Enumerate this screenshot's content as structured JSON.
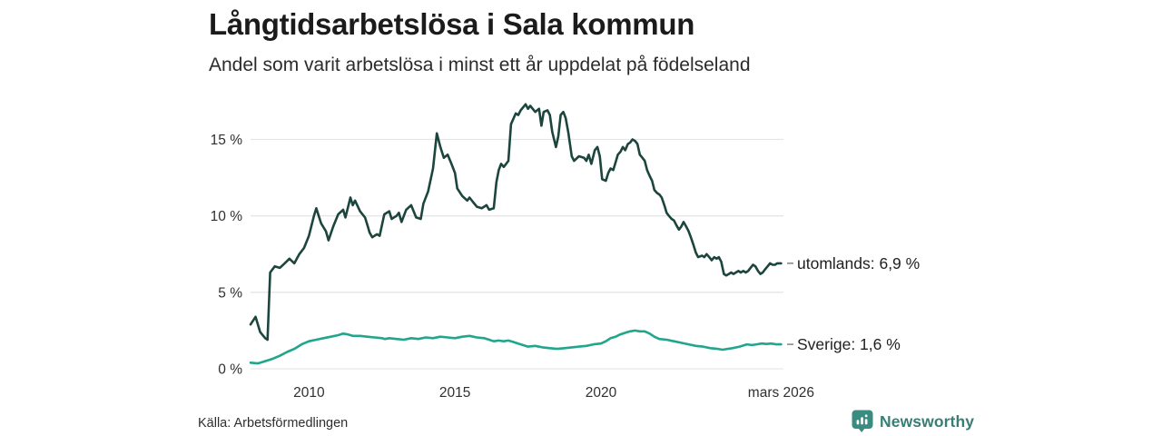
{
  "title": "Långtidsarbetslösa i Sala kommun",
  "subtitle": "Andel som varit arbetslösa i minst ett år uppdelat på födelseland",
  "source": "Källa: Arbetsförmedlingen",
  "branding": {
    "name": "Newsworthy",
    "icon": "newsworthy-logo-icon",
    "icon_color": "#3a8c80",
    "text_color": "#377e74"
  },
  "chart_data": {
    "type": "line",
    "title": "Långtidsarbetslösa i Sala kommun",
    "subtitle": "Andel som varit arbetslösa i minst ett år uppdelat på födelseland",
    "xlabel": "",
    "ylabel": "",
    "x_range": [
      2008.0,
      2026.25
    ],
    "y_range": [
      0,
      18
    ],
    "grid": true,
    "gridline_color": "#e6e6e6",
    "legend_position": "right-of-line-end",
    "legend_dash_color": "#8a8a8a",
    "y_axis": {
      "ticks": [
        {
          "v": 0,
          "label": "0 %"
        },
        {
          "v": 5,
          "label": "5 %"
        },
        {
          "v": 10,
          "label": "10 %"
        },
        {
          "v": 15,
          "label": "15 %"
        }
      ]
    },
    "x_axis": {
      "ticks": [
        {
          "v": 2010,
          "label": "2010"
        },
        {
          "v": 2015,
          "label": "2015"
        },
        {
          "v": 2020,
          "label": "2020"
        },
        {
          "v": 2026.17,
          "label": "mars 2026"
        }
      ]
    },
    "series": [
      {
        "name": "utomlands",
        "label": "utomlands: 6,9 %",
        "last_value": "6,9 %",
        "color": "#1c463d",
        "points": [
          [
            2008.0,
            2.9
          ],
          [
            2008.17,
            3.4
          ],
          [
            2008.33,
            2.4
          ],
          [
            2008.5,
            2.0
          ],
          [
            2008.58,
            1.9
          ],
          [
            2008.67,
            6.3
          ],
          [
            2008.83,
            6.7
          ],
          [
            2009.0,
            6.6
          ],
          [
            2009.17,
            6.9
          ],
          [
            2009.33,
            7.2
          ],
          [
            2009.5,
            6.9
          ],
          [
            2009.67,
            7.5
          ],
          [
            2009.83,
            7.9
          ],
          [
            2010.0,
            8.7
          ],
          [
            2010.17,
            10.0
          ],
          [
            2010.25,
            10.5
          ],
          [
            2010.42,
            9.5
          ],
          [
            2010.58,
            9.0
          ],
          [
            2010.67,
            8.4
          ],
          [
            2010.83,
            9.3
          ],
          [
            2011.0,
            10.1
          ],
          [
            2011.17,
            10.4
          ],
          [
            2011.25,
            9.9
          ],
          [
            2011.42,
            11.2
          ],
          [
            2011.5,
            10.7
          ],
          [
            2011.58,
            11.0
          ],
          [
            2011.75,
            10.3
          ],
          [
            2011.92,
            9.9
          ],
          [
            2012.0,
            9.4
          ],
          [
            2012.08,
            8.9
          ],
          [
            2012.17,
            8.6
          ],
          [
            2012.33,
            8.8
          ],
          [
            2012.42,
            8.7
          ],
          [
            2012.58,
            10.1
          ],
          [
            2012.75,
            10.3
          ],
          [
            2012.83,
            9.8
          ],
          [
            2013.0,
            10.0
          ],
          [
            2013.08,
            10.2
          ],
          [
            2013.17,
            9.6
          ],
          [
            2013.33,
            10.4
          ],
          [
            2013.5,
            10.7
          ],
          [
            2013.67,
            9.9
          ],
          [
            2013.83,
            9.8
          ],
          [
            2013.92,
            10.8
          ],
          [
            2014.08,
            11.6
          ],
          [
            2014.25,
            13.1
          ],
          [
            2014.38,
            15.4
          ],
          [
            2014.5,
            14.5
          ],
          [
            2014.62,
            13.8
          ],
          [
            2014.75,
            14.0
          ],
          [
            2014.88,
            13.4
          ],
          [
            2015.0,
            12.8
          ],
          [
            2015.08,
            11.8
          ],
          [
            2015.25,
            11.3
          ],
          [
            2015.42,
            11.0
          ],
          [
            2015.5,
            11.2
          ],
          [
            2015.62,
            10.9
          ],
          [
            2015.75,
            10.6
          ],
          [
            2015.92,
            10.5
          ],
          [
            2016.08,
            10.7
          ],
          [
            2016.17,
            10.4
          ],
          [
            2016.33,
            10.5
          ],
          [
            2016.42,
            12.2
          ],
          [
            2016.5,
            13.0
          ],
          [
            2016.58,
            13.4
          ],
          [
            2016.67,
            13.2
          ],
          [
            2016.83,
            13.6
          ],
          [
            2016.92,
            16.0
          ],
          [
            2017.08,
            16.7
          ],
          [
            2017.17,
            16.6
          ],
          [
            2017.25,
            16.9
          ],
          [
            2017.42,
            17.3
          ],
          [
            2017.5,
            17.0
          ],
          [
            2017.58,
            17.2
          ],
          [
            2017.75,
            16.8
          ],
          [
            2017.88,
            17.0
          ],
          [
            2017.96,
            15.9
          ],
          [
            2018.04,
            16.8
          ],
          [
            2018.17,
            16.9
          ],
          [
            2018.25,
            16.6
          ],
          [
            2018.33,
            15.5
          ],
          [
            2018.46,
            14.5
          ],
          [
            2018.54,
            15.2
          ],
          [
            2018.62,
            16.6
          ],
          [
            2018.71,
            16.8
          ],
          [
            2018.79,
            16.4
          ],
          [
            2018.88,
            15.5
          ],
          [
            2019.0,
            13.9
          ],
          [
            2019.08,
            13.6
          ],
          [
            2019.25,
            13.9
          ],
          [
            2019.42,
            13.8
          ],
          [
            2019.5,
            13.6
          ],
          [
            2019.58,
            14.0
          ],
          [
            2019.67,
            13.4
          ],
          [
            2019.79,
            14.3
          ],
          [
            2019.88,
            14.5
          ],
          [
            2019.96,
            13.9
          ],
          [
            2020.04,
            12.4
          ],
          [
            2020.17,
            12.3
          ],
          [
            2020.25,
            12.8
          ],
          [
            2020.33,
            13.1
          ],
          [
            2020.42,
            13.0
          ],
          [
            2020.5,
            13.5
          ],
          [
            2020.58,
            14.0
          ],
          [
            2020.67,
            14.2
          ],
          [
            2020.75,
            14.5
          ],
          [
            2020.83,
            14.3
          ],
          [
            2020.92,
            14.7
          ],
          [
            2021.0,
            14.8
          ],
          [
            2021.08,
            15.0
          ],
          [
            2021.17,
            14.9
          ],
          [
            2021.25,
            14.7
          ],
          [
            2021.33,
            14.0
          ],
          [
            2021.42,
            13.8
          ],
          [
            2021.5,
            13.6
          ],
          [
            2021.58,
            13.0
          ],
          [
            2021.67,
            12.6
          ],
          [
            2021.75,
            12.3
          ],
          [
            2021.83,
            11.7
          ],
          [
            2021.92,
            11.5
          ],
          [
            2022.0,
            11.4
          ],
          [
            2022.08,
            11.2
          ],
          [
            2022.17,
            10.7
          ],
          [
            2022.25,
            10.2
          ],
          [
            2022.33,
            10.0
          ],
          [
            2022.42,
            9.8
          ],
          [
            2022.5,
            9.7
          ],
          [
            2022.58,
            9.4
          ],
          [
            2022.67,
            9.1
          ],
          [
            2022.75,
            9.3
          ],
          [
            2022.83,
            9.6
          ],
          [
            2022.92,
            9.3
          ],
          [
            2023.0,
            9.0
          ],
          [
            2023.08,
            8.6
          ],
          [
            2023.17,
            8.1
          ],
          [
            2023.25,
            7.6
          ],
          [
            2023.33,
            7.3
          ],
          [
            2023.46,
            7.4
          ],
          [
            2023.54,
            7.3
          ],
          [
            2023.62,
            7.5
          ],
          [
            2023.71,
            7.3
          ],
          [
            2023.79,
            7.1
          ],
          [
            2023.88,
            7.3
          ],
          [
            2023.96,
            7.2
          ],
          [
            2024.04,
            7.3
          ],
          [
            2024.12,
            7.0
          ],
          [
            2024.21,
            6.2
          ],
          [
            2024.29,
            6.1
          ],
          [
            2024.38,
            6.2
          ],
          [
            2024.46,
            6.3
          ],
          [
            2024.54,
            6.2
          ],
          [
            2024.62,
            6.3
          ],
          [
            2024.71,
            6.4
          ],
          [
            2024.79,
            6.3
          ],
          [
            2024.88,
            6.4
          ],
          [
            2024.96,
            6.3
          ],
          [
            2025.04,
            6.4
          ],
          [
            2025.12,
            6.6
          ],
          [
            2025.21,
            6.8
          ],
          [
            2025.29,
            6.7
          ],
          [
            2025.38,
            6.4
          ],
          [
            2025.46,
            6.2
          ],
          [
            2025.54,
            6.3
          ],
          [
            2025.62,
            6.5
          ],
          [
            2025.71,
            6.7
          ],
          [
            2025.79,
            6.9
          ],
          [
            2025.88,
            6.8
          ],
          [
            2025.96,
            6.8
          ],
          [
            2026.04,
            6.9
          ],
          [
            2026.17,
            6.9
          ]
        ]
      },
      {
        "name": "Sverige",
        "label": "Sverige: 1,6 %",
        "last_value": "1,6 %",
        "color": "#21a58c",
        "points": [
          [
            2008.0,
            0.4
          ],
          [
            2008.25,
            0.35
          ],
          [
            2008.5,
            0.5
          ],
          [
            2008.75,
            0.65
          ],
          [
            2009.0,
            0.85
          ],
          [
            2009.25,
            1.1
          ],
          [
            2009.5,
            1.3
          ],
          [
            2009.75,
            1.6
          ],
          [
            2010.0,
            1.8
          ],
          [
            2010.25,
            1.9
          ],
          [
            2010.5,
            2.0
          ],
          [
            2010.75,
            2.1
          ],
          [
            2011.0,
            2.2
          ],
          [
            2011.17,
            2.3
          ],
          [
            2011.33,
            2.25
          ],
          [
            2011.5,
            2.15
          ],
          [
            2011.75,
            2.15
          ],
          [
            2012.0,
            2.1
          ],
          [
            2012.25,
            2.05
          ],
          [
            2012.5,
            2.0
          ],
          [
            2012.6,
            1.95
          ],
          [
            2012.75,
            2.0
          ],
          [
            2013.0,
            1.95
          ],
          [
            2013.25,
            1.9
          ],
          [
            2013.5,
            2.0
          ],
          [
            2013.75,
            1.95
          ],
          [
            2014.0,
            2.05
          ],
          [
            2014.25,
            2.0
          ],
          [
            2014.5,
            2.1
          ],
          [
            2014.75,
            2.05
          ],
          [
            2015.0,
            2.0
          ],
          [
            2015.25,
            2.1
          ],
          [
            2015.5,
            2.15
          ],
          [
            2015.75,
            2.05
          ],
          [
            2016.0,
            2.0
          ],
          [
            2016.17,
            1.9
          ],
          [
            2016.33,
            1.8
          ],
          [
            2016.5,
            1.85
          ],
          [
            2016.67,
            1.8
          ],
          [
            2016.83,
            1.85
          ],
          [
            2017.0,
            1.75
          ],
          [
            2017.25,
            1.6
          ],
          [
            2017.5,
            1.45
          ],
          [
            2017.75,
            1.5
          ],
          [
            2018.0,
            1.4
          ],
          [
            2018.25,
            1.35
          ],
          [
            2018.5,
            1.3
          ],
          [
            2018.75,
            1.35
          ],
          [
            2019.0,
            1.4
          ],
          [
            2019.25,
            1.45
          ],
          [
            2019.5,
            1.5
          ],
          [
            2019.75,
            1.6
          ],
          [
            2020.0,
            1.65
          ],
          [
            2020.17,
            1.8
          ],
          [
            2020.33,
            2.0
          ],
          [
            2020.5,
            2.1
          ],
          [
            2020.67,
            2.25
          ],
          [
            2020.83,
            2.35
          ],
          [
            2021.0,
            2.45
          ],
          [
            2021.17,
            2.5
          ],
          [
            2021.33,
            2.45
          ],
          [
            2021.5,
            2.45
          ],
          [
            2021.67,
            2.3
          ],
          [
            2021.83,
            2.1
          ],
          [
            2022.0,
            1.95
          ],
          [
            2022.25,
            1.9
          ],
          [
            2022.5,
            1.8
          ],
          [
            2022.75,
            1.7
          ],
          [
            2023.0,
            1.6
          ],
          [
            2023.25,
            1.5
          ],
          [
            2023.5,
            1.45
          ],
          [
            2023.75,
            1.35
          ],
          [
            2024.0,
            1.3
          ],
          [
            2024.17,
            1.25
          ],
          [
            2024.33,
            1.3
          ],
          [
            2024.5,
            1.35
          ],
          [
            2024.75,
            1.45
          ],
          [
            2025.0,
            1.6
          ],
          [
            2025.17,
            1.55
          ],
          [
            2025.33,
            1.6
          ],
          [
            2025.5,
            1.65
          ],
          [
            2025.67,
            1.62
          ],
          [
            2025.83,
            1.65
          ],
          [
            2026.0,
            1.6
          ],
          [
            2026.17,
            1.6
          ]
        ]
      }
    ]
  }
}
